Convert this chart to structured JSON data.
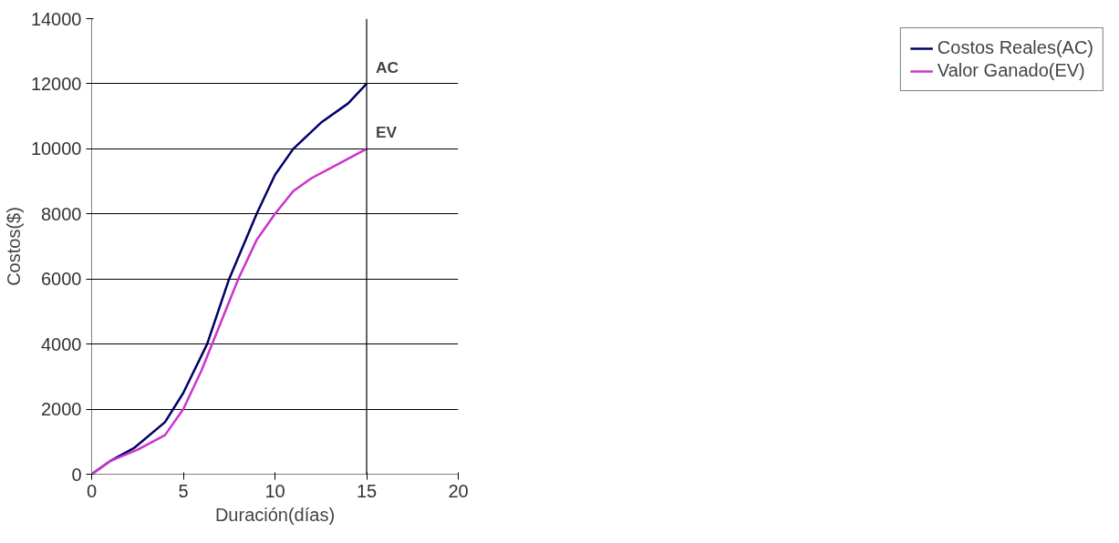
{
  "chart_data": {
    "type": "line",
    "xlabel": "Duración(días)",
    "ylabel": "Costos($)",
    "xlim": [
      0,
      20
    ],
    "xticks": [
      0,
      5,
      10,
      15,
      20
    ],
    "ylim": [
      0,
      14000
    ],
    "yticks": [
      0,
      2000,
      4000,
      6000,
      8000,
      10000,
      12000,
      14000
    ],
    "grid": "y",
    "legend": "right",
    "marker": "none",
    "line_style": "solid",
    "series": [
      {
        "name": "Costos Reales(AC)",
        "color": "#000066",
        "x": [
          0,
          1,
          2.3,
          4,
          5,
          6.3,
          7.5,
          9,
          10,
          11,
          12.5,
          14,
          15
        ],
        "values": [
          0,
          400,
          800,
          1600,
          2500,
          4000,
          6000,
          8000,
          9200,
          10000,
          10800,
          11400,
          12000
        ]
      },
      {
        "name": "Valor Ganado(EV)",
        "color": "#cc33cc",
        "x": [
          0,
          1,
          2.5,
          4,
          5,
          6,
          7,
          8,
          9,
          10,
          11,
          12,
          13,
          14,
          15
        ],
        "values": [
          0,
          400,
          750,
          1200,
          2000,
          3200,
          4600,
          6000,
          7200,
          8000,
          8700,
          9100,
          9400,
          9700,
          10000
        ]
      }
    ],
    "ref_lines": [
      {
        "axis": "x",
        "value": 15,
        "color": "#000000",
        "line_style": "solid"
      }
    ],
    "annotations": [
      {
        "text": "AC",
        "x": 15,
        "y": 12000
      },
      {
        "text": "EV",
        "x": 15,
        "y": 10000
      }
    ]
  }
}
